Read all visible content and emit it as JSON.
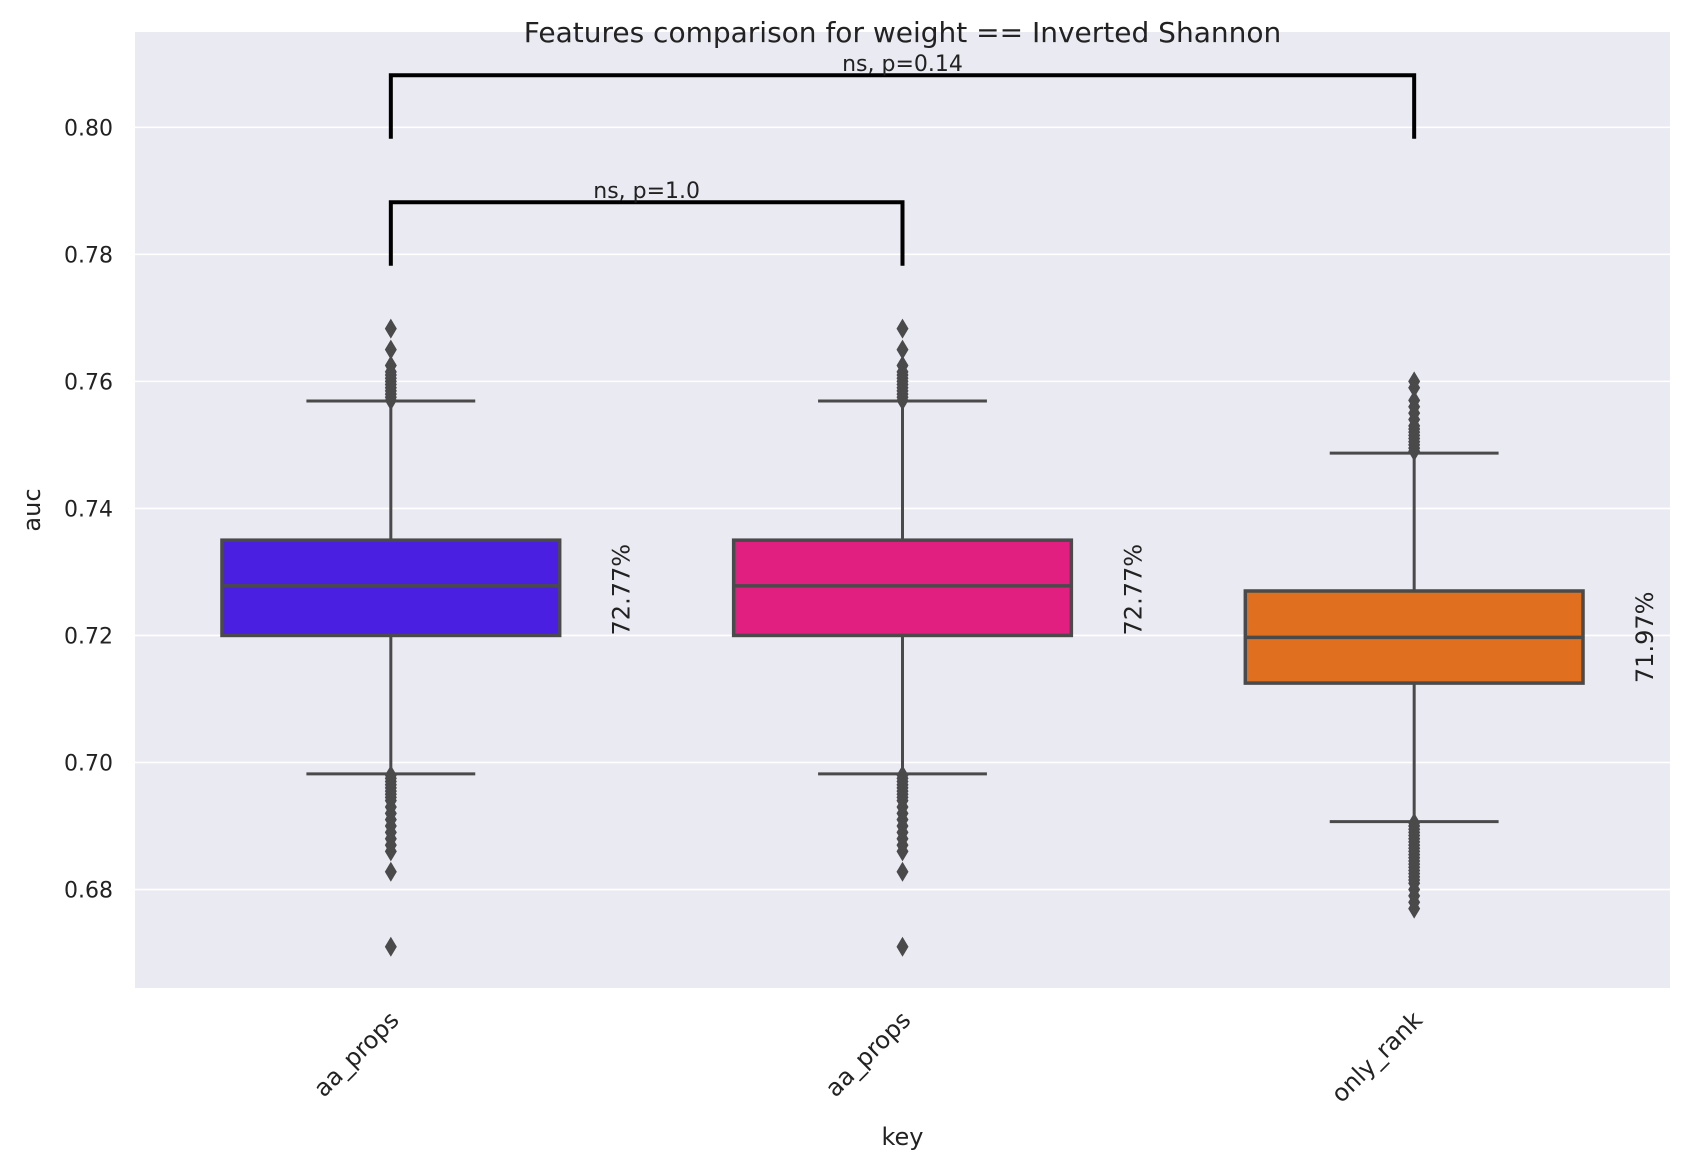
{
  "chart_data": {
    "type": "box",
    "title": "Features comparison for weight == Inverted Shannon",
    "xlabel": "key",
    "ylabel": "auc",
    "ylim": [
      0.6645,
      0.815
    ],
    "yticks": [
      0.68,
      0.7,
      0.72,
      0.74,
      0.76,
      0.78,
      0.8
    ],
    "ytick_labels": [
      "0.68",
      "0.70",
      "0.72",
      "0.74",
      "0.76",
      "0.78",
      "0.80"
    ],
    "grid": true,
    "categories": [
      "aa_props",
      "aa_props",
      "only_rank"
    ],
    "boxes": [
      {
        "category": "aa_props",
        "color": "#4a1fe2",
        "q1": 0.72,
        "median": 0.7278,
        "q3": 0.735,
        "whisker_low": 0.6982,
        "whisker_high": 0.7569,
        "outliers": [
          0.757,
          0.7575,
          0.758,
          0.7585,
          0.759,
          0.7595,
          0.76,
          0.7605,
          0.761,
          0.7615,
          0.7625,
          0.765,
          0.7683,
          0.698,
          0.6975,
          0.697,
          0.6965,
          0.696,
          0.6955,
          0.695,
          0.6945,
          0.694,
          0.693,
          0.692,
          0.691,
          0.69,
          0.689,
          0.688,
          0.687,
          0.686,
          0.6828,
          0.671
        ],
        "label": "72.77%"
      },
      {
        "category": "aa_props",
        "color": "#e01f80",
        "q1": 0.72,
        "median": 0.7278,
        "q3": 0.735,
        "whisker_low": 0.6982,
        "whisker_high": 0.7569,
        "outliers": [
          0.757,
          0.7575,
          0.758,
          0.7585,
          0.759,
          0.7595,
          0.76,
          0.7605,
          0.761,
          0.7615,
          0.7625,
          0.765,
          0.7683,
          0.698,
          0.6975,
          0.697,
          0.6965,
          0.696,
          0.6955,
          0.695,
          0.6945,
          0.694,
          0.693,
          0.692,
          0.691,
          0.69,
          0.689,
          0.688,
          0.687,
          0.686,
          0.6828,
          0.671
        ],
        "label": "72.77%"
      },
      {
        "category": "only_rank",
        "color": "#e07020",
        "q1": 0.7125,
        "median": 0.7197,
        "q3": 0.727,
        "whisker_low": 0.6907,
        "whisker_high": 0.7487,
        "outliers": [
          0.749,
          0.7495,
          0.75,
          0.7505,
          0.751,
          0.7515,
          0.752,
          0.7525,
          0.753,
          0.754,
          0.755,
          0.756,
          0.757,
          0.759,
          0.76,
          0.6905,
          0.69,
          0.6895,
          0.689,
          0.6885,
          0.688,
          0.6875,
          0.687,
          0.6865,
          0.686,
          0.6855,
          0.685,
          0.6845,
          0.684,
          0.6835,
          0.683,
          0.6825,
          0.682,
          0.6815,
          0.681,
          0.68,
          0.679,
          0.678,
          0.677
        ],
        "label": "71.97%"
      }
    ],
    "annotations": [
      {
        "from": 0,
        "to": 1,
        "y_bottom": 0.7782,
        "y_top": 0.7882,
        "text": "ns, p=1.0"
      },
      {
        "from": 0,
        "to": 2,
        "y_bottom": 0.7982,
        "y_top": 0.8082,
        "text": "ns, p=0.14"
      }
    ],
    "colors": {
      "background": "#eaeaf2",
      "grid": "#ffffff",
      "box_edge": "#4a4a4a",
      "bracket": "#000000"
    }
  }
}
